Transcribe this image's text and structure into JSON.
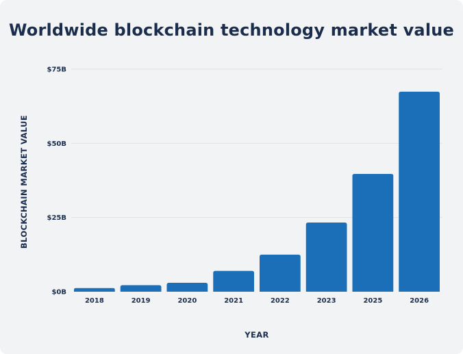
{
  "chart_data": {
    "type": "bar",
    "title": "Worldwide blockchain technology market value",
    "xlabel": "YEAR",
    "ylabel": "BLOCKCHAIN MARKET VALUE",
    "categories": [
      "2018",
      "2019",
      "2020",
      "2021",
      "2022",
      "2023",
      "2025",
      "2026"
    ],
    "values": [
      1.2,
      2.2,
      3.0,
      7.0,
      12.5,
      23.3,
      39.7,
      67.4
    ],
    "ylim": [
      0,
      75
    ],
    "yticks": [
      0,
      25,
      50,
      75
    ],
    "ytick_labels": [
      "$0B",
      "$25B",
      "$50B",
      "$75B"
    ],
    "grid": true,
    "legend": "none",
    "colors": {
      "bar": "#1b6fb8",
      "grid": "#dfe2e7",
      "text": "#1b2d4d",
      "background": "#f2f3f5"
    }
  }
}
